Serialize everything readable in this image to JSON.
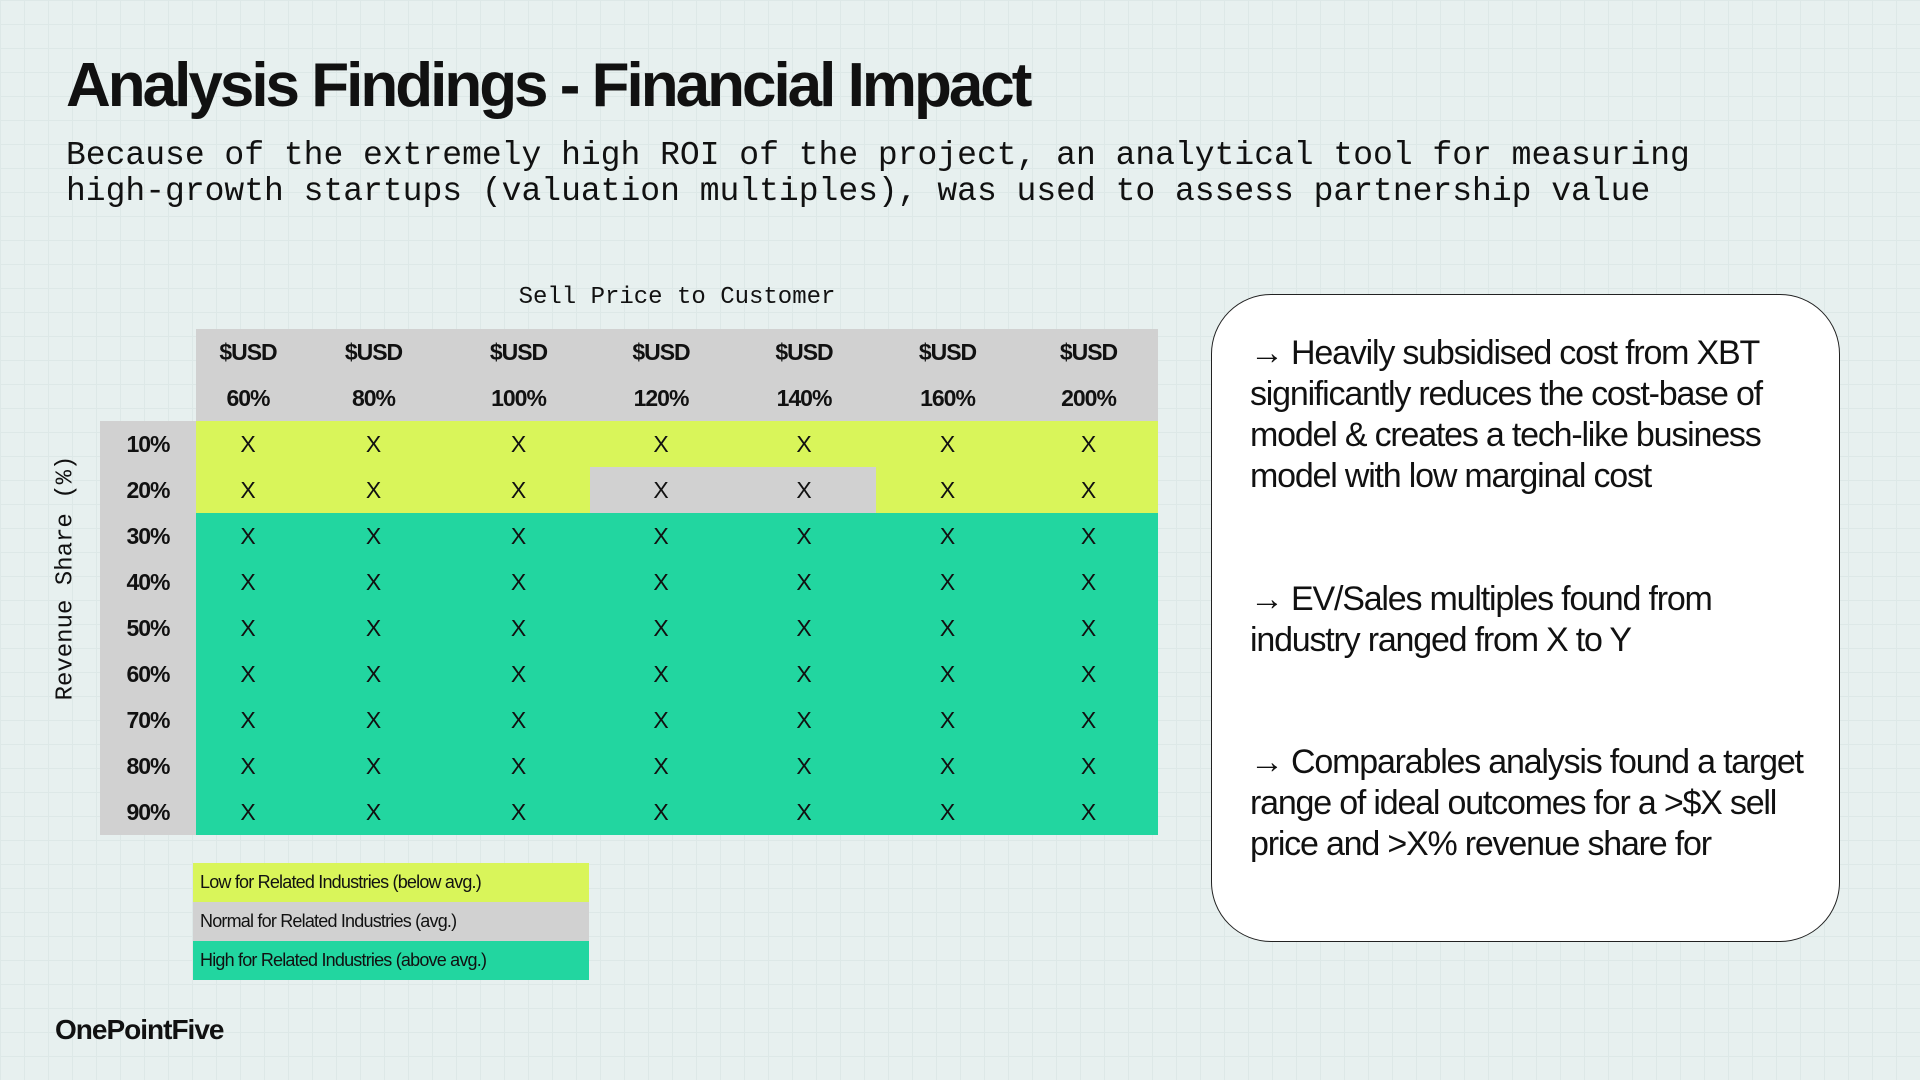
{
  "header": {
    "title": "Analysis Findings - Financial Impact",
    "subtitle_lines": [
      "Because of the extremely high ROI of the project, an analytical tool for measuring",
      "high-growth startups (valuation multiples), was used to assess partnership value"
    ]
  },
  "table": {
    "column_axis_label": "Sell Price to Customer",
    "row_axis_label": "Revenue Share (%)",
    "currency_row": [
      "$USD",
      "$USD",
      "$USD",
      "$USD",
      "$USD",
      "$USD",
      "$USD"
    ],
    "columns": [
      "60%",
      "80%",
      "100%",
      "120%",
      "140%",
      "160%",
      "200%"
    ],
    "rows": [
      {
        "label": "10%",
        "cells": [
          "X",
          "X",
          "X",
          "X",
          "X",
          "X",
          "X"
        ],
        "colors": [
          "#d9f55a",
          "#d9f55a",
          "#d9f55a",
          "#d9f55a",
          "#d9f55a",
          "#d9f55a",
          "#d9f55a"
        ]
      },
      {
        "label": "20%",
        "cells": [
          "X",
          "X",
          "X",
          "X",
          "X",
          "X",
          "X"
        ],
        "colors": [
          "#d9f55a",
          "#d9f55a",
          "#d9f55a",
          "#d1d1d1",
          "#d1d1d1",
          "#d9f55a",
          "#d9f55a"
        ]
      },
      {
        "label": "30%",
        "cells": [
          "X",
          "X",
          "X",
          "X",
          "X",
          "X",
          "X"
        ],
        "colors": [
          "#22d6a0",
          "#22d6a0",
          "#22d6a0",
          "#22d6a0",
          "#22d6a0",
          "#22d6a0",
          "#22d6a0"
        ]
      },
      {
        "label": "40%",
        "cells": [
          "X",
          "X",
          "X",
          "X",
          "X",
          "X",
          "X"
        ],
        "colors": [
          "#22d6a0",
          "#22d6a0",
          "#22d6a0",
          "#22d6a0",
          "#22d6a0",
          "#22d6a0",
          "#22d6a0"
        ]
      },
      {
        "label": "50%",
        "cells": [
          "X",
          "X",
          "X",
          "X",
          "X",
          "X",
          "X"
        ],
        "colors": [
          "#22d6a0",
          "#22d6a0",
          "#22d6a0",
          "#22d6a0",
          "#22d6a0",
          "#22d6a0",
          "#22d6a0"
        ]
      },
      {
        "label": "60%",
        "cells": [
          "X",
          "X",
          "X",
          "X",
          "X",
          "X",
          "X"
        ],
        "colors": [
          "#22d6a0",
          "#22d6a0",
          "#22d6a0",
          "#22d6a0",
          "#22d6a0",
          "#22d6a0",
          "#22d6a0"
        ]
      },
      {
        "label": "70%",
        "cells": [
          "X",
          "X",
          "X",
          "X",
          "X",
          "X",
          "X"
        ],
        "colors": [
          "#22d6a0",
          "#22d6a0",
          "#22d6a0",
          "#22d6a0",
          "#22d6a0",
          "#22d6a0",
          "#22d6a0"
        ]
      },
      {
        "label": "80%",
        "cells": [
          "X",
          "X",
          "X",
          "X",
          "X",
          "X",
          "X"
        ],
        "colors": [
          "#22d6a0",
          "#22d6a0",
          "#22d6a0",
          "#22d6a0",
          "#22d6a0",
          "#22d6a0",
          "#22d6a0"
        ]
      },
      {
        "label": "90%",
        "cells": [
          "X",
          "X",
          "X",
          "X",
          "X",
          "X",
          "X"
        ],
        "colors": [
          "#22d6a0",
          "#22d6a0",
          "#22d6a0",
          "#22d6a0",
          "#22d6a0",
          "#22d6a0",
          "#22d6a0"
        ]
      }
    ]
  },
  "legend": [
    {
      "label": "Low for Related Industries (below avg.)",
      "color": "#d9f55a"
    },
    {
      "label": "Normal for Related Industries (avg.)",
      "color": "#d1d1d1"
    },
    {
      "label": "High for Related Industries (above avg.)",
      "color": "#22d6a0"
    }
  ],
  "notes": [
    "→ Heavily subsidised cost from XBT significantly reduces the cost-base of model & creates a tech-like business model with low marginal cost",
    "→ EV/Sales multiples found from industry ranged from X to Y",
    "→ Comparables analysis found a target range of ideal outcomes for a >$X sell price and >X% revenue share for"
  ],
  "logo": "OnePointFive"
}
